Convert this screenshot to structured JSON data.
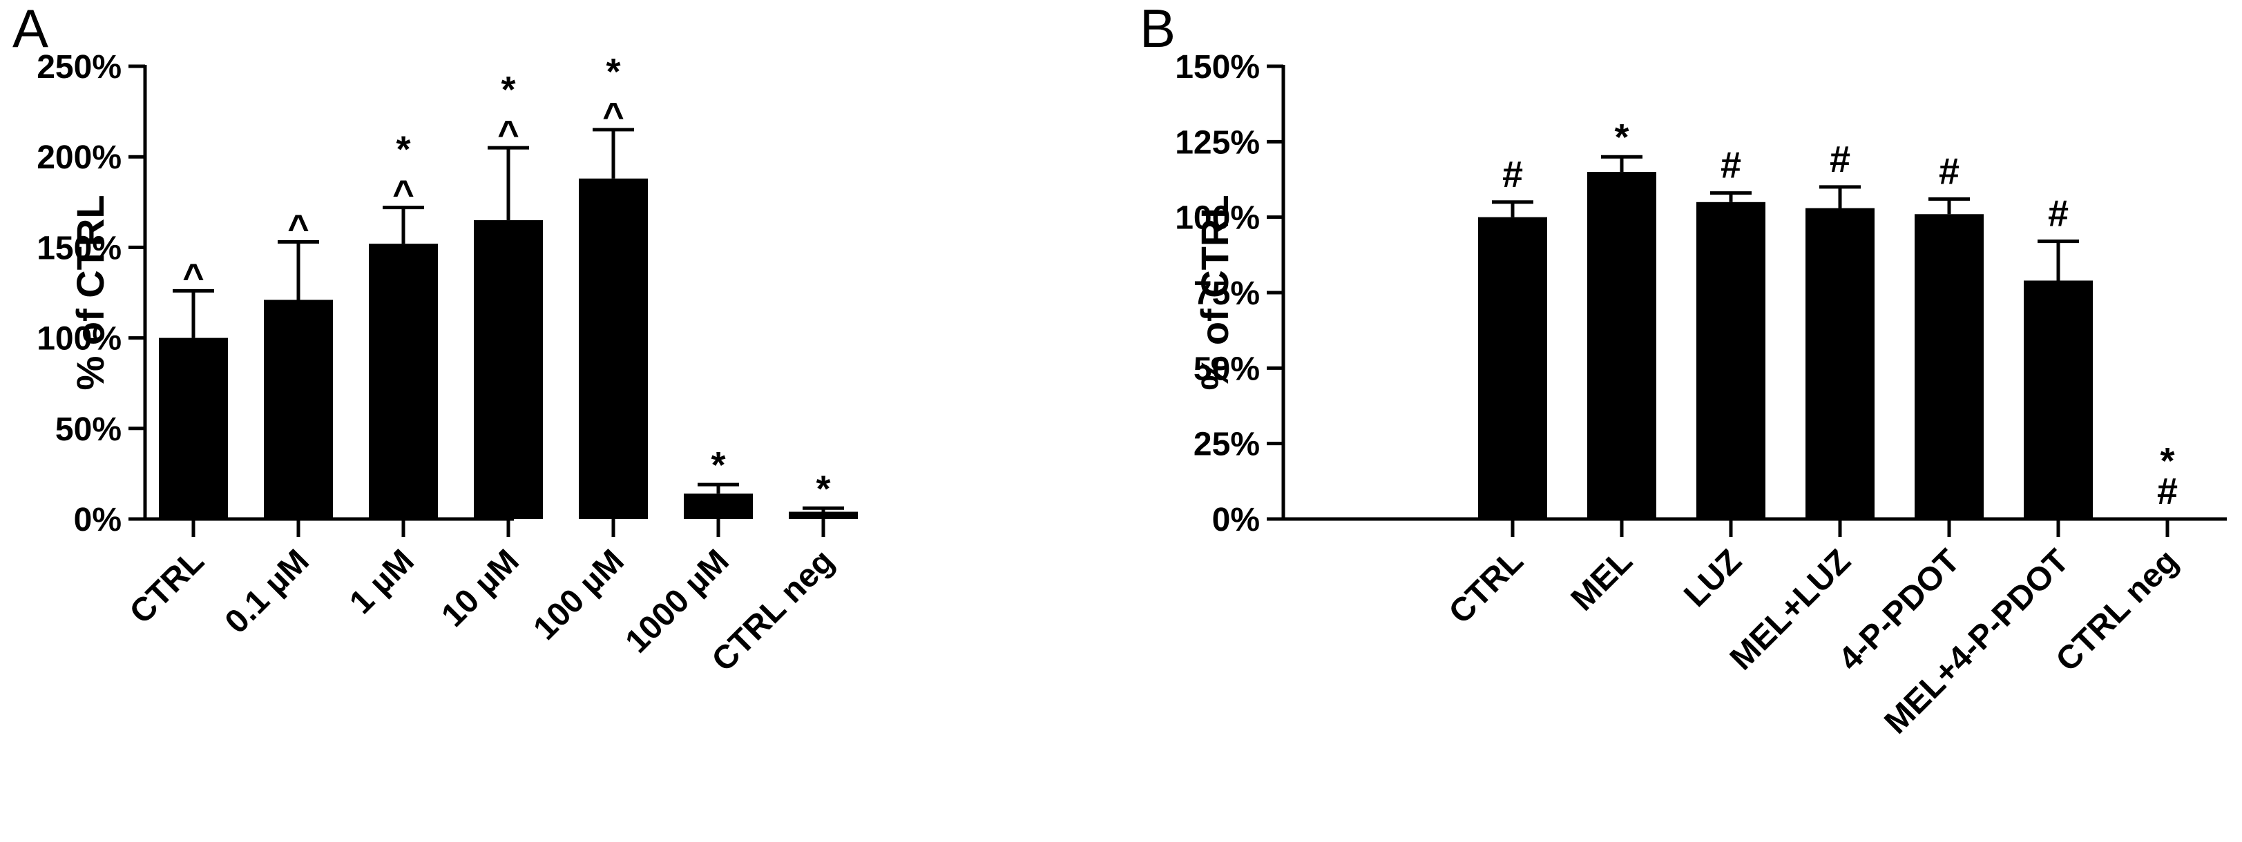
{
  "chart_data": [
    {
      "panel": "A",
      "type": "bar",
      "ylabel": "% of CTRL",
      "xlabel": "",
      "ylim": [
        0,
        250
      ],
      "yticks": [
        "0%",
        "50%",
        "100%",
        "150%",
        "200%",
        "250%"
      ],
      "ytick_values": [
        0,
        50,
        100,
        150,
        200,
        250
      ],
      "categories": [
        "CTRL",
        "0.1 µM",
        "1 µM",
        "10 µM",
        "100 µM",
        "1000 µM",
        "CTRL neg"
      ],
      "values": [
        100,
        121,
        152,
        165,
        188,
        14,
        4
      ],
      "errors": [
        26,
        32,
        20,
        40,
        27,
        5,
        2
      ],
      "annotations": [
        [
          "^"
        ],
        [
          "^"
        ],
        [
          "*",
          "^"
        ],
        [
          "*",
          "^"
        ],
        [
          "*",
          "^"
        ],
        [
          "*"
        ],
        [
          "*"
        ]
      ],
      "color": "#000000"
    },
    {
      "panel": "B",
      "type": "bar",
      "ylabel": "% of CTRL",
      "xlabel": "",
      "ylim": [
        0,
        150
      ],
      "yticks": [
        "0%",
        "25%",
        "50%",
        "75%",
        "100%",
        "125%",
        "150%"
      ],
      "ytick_values": [
        0,
        25,
        50,
        75,
        100,
        125,
        150
      ],
      "categories": [
        "CTRL",
        "MEL",
        "LUZ",
        "MEL+LUZ",
        "4-P-PDOT",
        "MEL+4-P-PDOT",
        "CTRL neg"
      ],
      "values": [
        100,
        115,
        105,
        103,
        101,
        79,
        0
      ],
      "errors": [
        5,
        5,
        3,
        7,
        5,
        13,
        0
      ],
      "annotations": [
        [
          "#"
        ],
        [
          "*"
        ],
        [
          "#"
        ],
        [
          "#"
        ],
        [
          "#"
        ],
        [
          "#"
        ],
        [
          "*",
          "#"
        ]
      ],
      "color": "#000000"
    }
  ]
}
